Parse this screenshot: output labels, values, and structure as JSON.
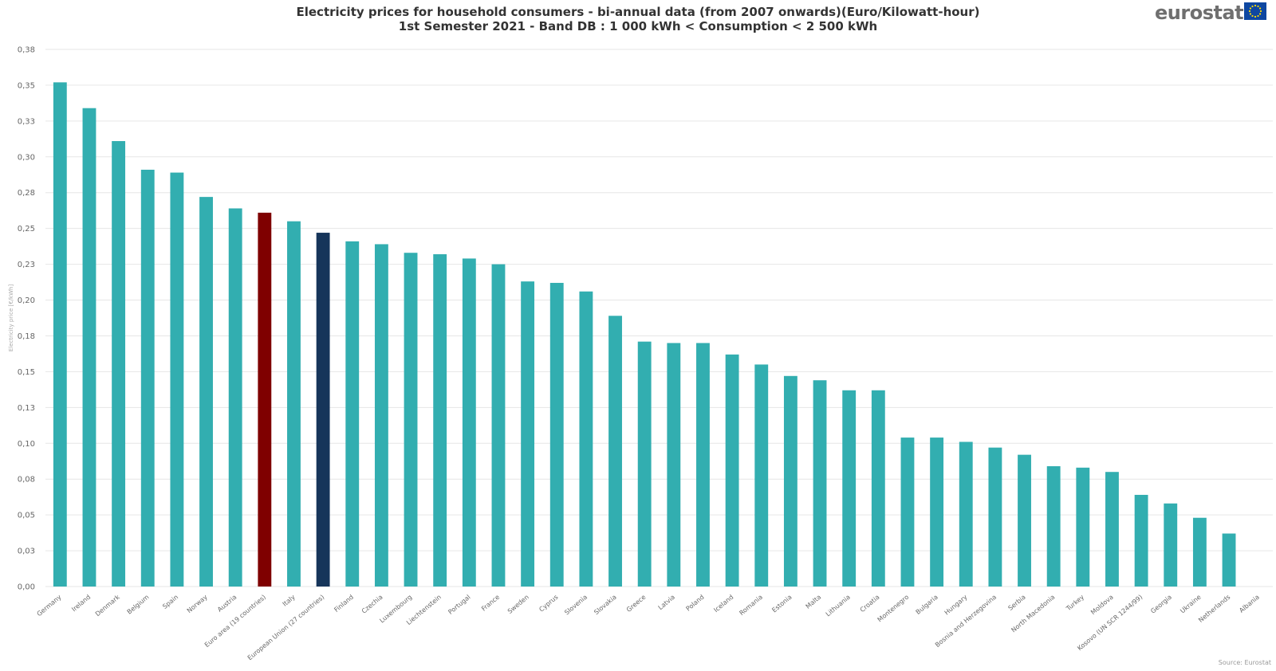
{
  "title_line1": "Electricity prices for household consumers - bi-annual data (from 2007 onwards)(Euro/Kilowatt-hour)",
  "title_line2": "1st Semester 2021 - Band DB : 1 000 kWh < Consumption < 2 500 kWh",
  "logo_text": "eurostat",
  "source": "Source: Eurostat",
  "colors": {
    "default_bar": "#32aeb0",
    "euro_area_bar": "#7f0000",
    "eu_bar": "#16355a",
    "grid": "#e6e6e6",
    "axis_text": "#666666",
    "flag_blue": "#0e47a1",
    "flag_star": "#ffdd00"
  },
  "chart_data": {
    "type": "bar",
    "title": "Electricity prices for household consumers - bi-annual data (from 2007 onwards)(Euro/Kilowatt-hour)",
    "subtitle": "1st Semester 2021 - Band DB : 1 000 kWh < Consumption < 2 500 kWh",
    "ylabel": "Electricity price [€/kWh]",
    "xlabel": "",
    "ylim": [
      0,
      0.375
    ],
    "yticks": [
      0,
      0.025,
      0.05,
      0.075,
      0.1,
      0.125,
      0.15,
      0.175,
      0.2,
      0.225,
      0.25,
      0.275,
      0.3,
      0.325,
      0.35,
      0.375
    ],
    "ytick_labels": [
      "0,00",
      "0,03",
      "0,05",
      "0,08",
      "0,10",
      "0,13",
      "0,15",
      "0,18",
      "0,20",
      "0,23",
      "0,25",
      "0,28",
      "0,30",
      "0,33",
      "0,35",
      "0,38"
    ],
    "grid": true,
    "legend": "none",
    "categories": [
      "Germany",
      "Ireland",
      "Denmark",
      "Belgium",
      "Spain",
      "Norway",
      "Austria",
      "Euro area (19 countries)",
      "Italy",
      "European Union (27 countries)",
      "Finland",
      "Czechia",
      "Luxembourg",
      "Liechtenstein",
      "Portugal",
      "France",
      "Sweden",
      "Cyprus",
      "Slovenia",
      "Slovakia",
      "Greece",
      "Latvia",
      "Poland",
      "Iceland",
      "Romania",
      "Estonia",
      "Malta",
      "Lithuania",
      "Croatia",
      "Montenegro",
      "Bulgaria",
      "Hungary",
      "Bosnia and Herzegovina",
      "Serbia",
      "North Macedonia",
      "Turkey",
      "Moldova",
      "Kosovo (UN SCR 1244/99)",
      "Georgia",
      "Ukraine",
      "Netherlands",
      "Albania"
    ],
    "values": [
      0.352,
      0.334,
      0.311,
      0.291,
      0.289,
      0.272,
      0.264,
      0.261,
      0.255,
      0.247,
      0.241,
      0.239,
      0.233,
      0.232,
      0.229,
      0.225,
      0.213,
      0.212,
      0.206,
      0.189,
      0.171,
      0.17,
      0.17,
      0.162,
      0.155,
      0.147,
      0.144,
      0.137,
      0.137,
      0.104,
      0.104,
      0.101,
      0.097,
      0.092,
      0.084,
      0.083,
      0.08,
      0.064,
      0.058,
      0.048,
      0.037,
      0.0
    ],
    "highlight": {
      "Euro area (19 countries)": "euro_area_bar",
      "European Union (27 countries)": "eu_bar"
    }
  }
}
